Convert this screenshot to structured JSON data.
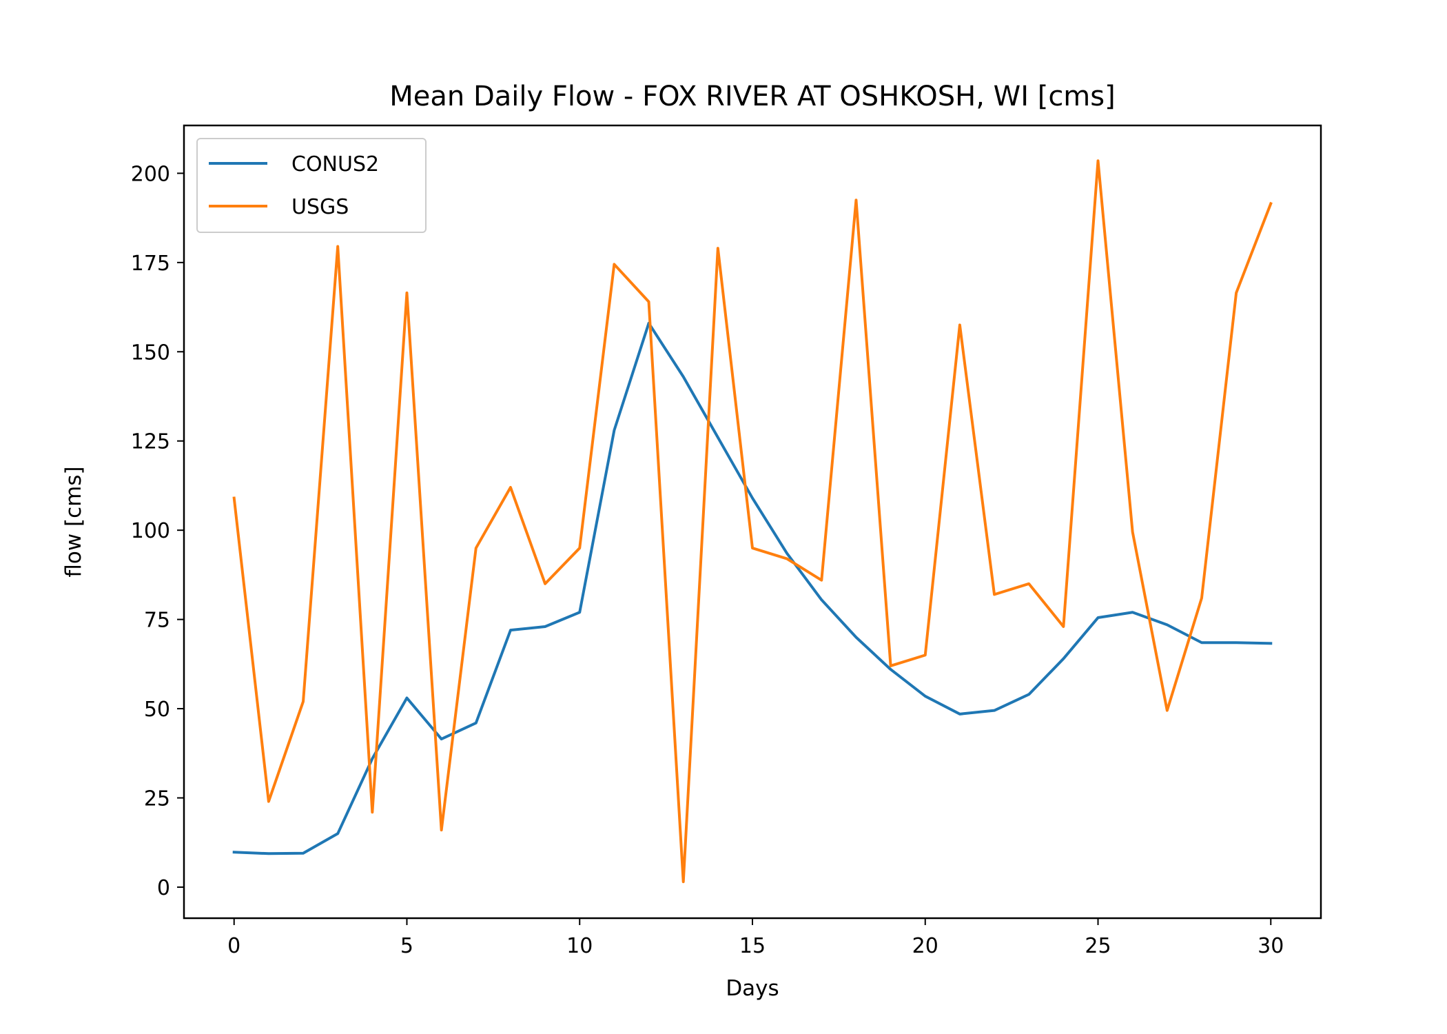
{
  "chart_data": {
    "type": "line",
    "title": "Mean Daily Flow - FOX RIVER AT OSHKOSH, WI [cms]",
    "xlabel": "Days",
    "ylabel": "flow [cms]",
    "xlim": [
      -1.45,
      31.45
    ],
    "ylim": [
      -8.7,
      213.4
    ],
    "xticks": [
      0,
      5,
      10,
      15,
      20,
      25,
      30
    ],
    "yticks": [
      0,
      25,
      50,
      75,
      100,
      125,
      150,
      175,
      200
    ],
    "grid": false,
    "legend_position": "upper left",
    "x": [
      0,
      1,
      2,
      3,
      4,
      5,
      6,
      7,
      8,
      9,
      10,
      11,
      12,
      13,
      14,
      15,
      16,
      17,
      18,
      19,
      20,
      21,
      22,
      23,
      24,
      25,
      26,
      27,
      28,
      29,
      30
    ],
    "series": [
      {
        "name": "CONUS2",
        "color": "#1f77b4",
        "values": [
          9.8,
          9.4,
          9.5,
          15,
          36,
          53,
          41.5,
          46,
          72,
          73,
          77,
          128,
          158,
          143,
          126,
          109,
          93.5,
          80.5,
          70,
          61,
          53.5,
          48.5,
          49.5,
          54,
          64,
          75.5,
          77,
          73.5,
          68.5,
          68.5,
          68.3
        ]
      },
      {
        "name": "USGS",
        "color": "#ff7f0e",
        "values": [
          109,
          24,
          52,
          179.5,
          21,
          166.5,
          16,
          95,
          112,
          85,
          95,
          174.5,
          164,
          1.5,
          179,
          95,
          92,
          86,
          192.5,
          62,
          65,
          157.5,
          82,
          85,
          73,
          203.5,
          99.5,
          49.5,
          81,
          166.5,
          191.5
        ]
      }
    ]
  }
}
